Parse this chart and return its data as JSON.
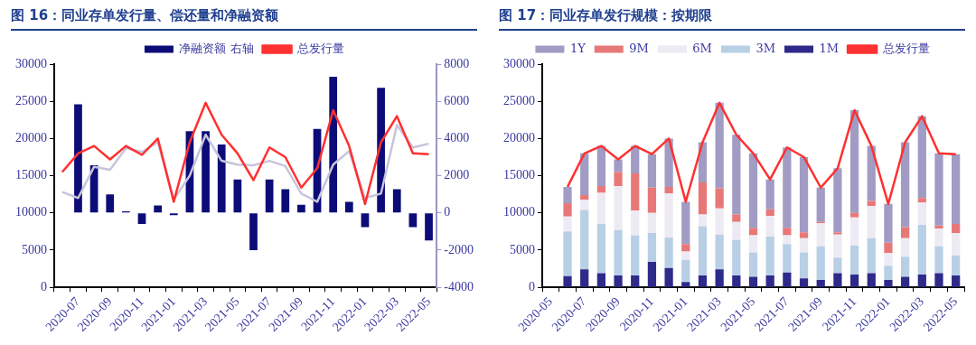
{
  "chart_data": [
    {
      "type": "bar",
      "title": "图 16：同业存单发行量、偿还量和净融资额",
      "categories": [
        null,
        "2020-07",
        null,
        "2020-09",
        null,
        "2020-11",
        null,
        "2021-01",
        null,
        "2021-03",
        null,
        "2021-05",
        null,
        "2021-07",
        null,
        "2021-09",
        null,
        "2021-11",
        null,
        "2022-01",
        null,
        "2022-03",
        null,
        "2022-05"
      ],
      "series": [
        {
          "name": "净融资额 右轴",
          "axis": "y2",
          "color": "#0c0c78",
          "values": [
            null,
            5840,
            2560,
            1000,
            80,
            -600,
            400,
            -120,
            4400,
            4400,
            3680,
            1800,
            -2000,
            1800,
            1280,
            440,
            4520,
            7320,
            600,
            -760,
            6720,
            1280,
            -760,
            -1480
          ]
        },
        {
          "name": "总发行量",
          "type": "line",
          "color": "#ff3030",
          "values": [
            15500,
            18000,
            19000,
            17200,
            19000,
            17800,
            20000,
            11500,
            19500,
            24800,
            20500,
            18000,
            14400,
            18800,
            17500,
            13400,
            16000,
            23800,
            19000,
            11200,
            19500,
            23000,
            18000,
            17900
          ]
        },
        {
          "type": "line",
          "color": "#c8c4dc",
          "values": [
            12800,
            12000,
            16200,
            15800,
            18700,
            18200,
            19500,
            11800,
            15000,
            20500,
            17000,
            16500,
            16400,
            17000,
            16300,
            12600,
            11500,
            16500,
            18300,
            12000,
            12600,
            21800,
            18800,
            19300
          ]
        }
      ],
      "ylim": [
        0,
        30000
      ],
      "yticks": [
        0,
        5000,
        10000,
        15000,
        20000,
        25000,
        30000
      ],
      "y2lim": [
        -4000,
        8000
      ],
      "y2ticks": [
        -4000,
        -2000,
        0,
        2000,
        4000,
        6000,
        8000
      ],
      "grid": false,
      "legend": "top",
      "marker": "none",
      "line_style": "solid"
    },
    {
      "type": "bar",
      "title": "图 17：同业存单发行规模：按期限",
      "categories": [
        "2020-05",
        null,
        "2020-07",
        null,
        "2020-09",
        null,
        "2020-11",
        null,
        "2021-01",
        null,
        "2021-03",
        null,
        "2021-05",
        null,
        "2021-07",
        null,
        "2021-09",
        null,
        "2021-11",
        null,
        "2022-01",
        null,
        "2022-03",
        null,
        "2022-05"
      ],
      "stacked": true,
      "series": [
        {
          "name": "1M",
          "color": "#2e2a8a",
          "values": [
            null,
            1500,
            2400,
            1900,
            1600,
            1600,
            3400,
            2600,
            700,
            1600,
            2400,
            1600,
            1400,
            1600,
            2000,
            1200,
            1000,
            1900,
            1700,
            1900,
            1000,
            1400,
            1700,
            1900,
            1600
          ]
        },
        {
          "name": "3M",
          "color": "#b8cfe6",
          "values": [
            null,
            6000,
            8000,
            6600,
            6100,
            5400,
            3900,
            4100,
            3000,
            6600,
            4700,
            4800,
            3300,
            5200,
            3800,
            3500,
            4500,
            2100,
            3900,
            4700,
            1900,
            2700,
            6700,
            3600,
            2700
          ]
        },
        {
          "name": "6M",
          "color": "#eeeaf4",
          "values": [
            null,
            2000,
            1400,
            4200,
            5900,
            3300,
            2700,
            5900,
            1100,
            1600,
            3500,
            2400,
            2300,
            2800,
            1200,
            1900,
            3100,
            3100,
            3800,
            4300,
            1700,
            2500,
            3000,
            2400,
            3000
          ]
        },
        {
          "name": "9M",
          "color": "#e87878",
          "values": [
            null,
            1800,
            600,
            900,
            1900,
            5000,
            3400,
            900,
            1000,
            4300,
            2700,
            1000,
            1000,
            900,
            1000,
            800,
            200,
            300,
            600,
            700,
            1400,
            1500,
            600,
            400,
            1200
          ]
        },
        {
          "name": "1Y",
          "color": "#a09cc4",
          "values": [
            null,
            2200,
            5600,
            5400,
            1700,
            3700,
            4500,
            6500,
            5700,
            5400,
            11500,
            10700,
            10000,
            4000,
            10800,
            10100,
            4600,
            8600,
            13800,
            7400,
            5200,
            11400,
            11000,
            9700,
            9400
          ]
        },
        {
          "name": "总发行量",
          "type": "line",
          "color": "#ff3030",
          "values": [
            null,
            13500,
            18000,
            19000,
            17200,
            19000,
            17900,
            20000,
            11500,
            19500,
            24800,
            20500,
            18000,
            14500,
            18800,
            17500,
            13400,
            16000,
            23800,
            19000,
            11200,
            19500,
            23000,
            18000,
            17900
          ]
        }
      ],
      "ylim": [
        0,
        30000
      ],
      "yticks": [
        0,
        5000,
        10000,
        15000,
        20000,
        25000,
        30000
      ],
      "grid": false,
      "legend": "top",
      "marker": "none",
      "line_style": "solid"
    }
  ]
}
